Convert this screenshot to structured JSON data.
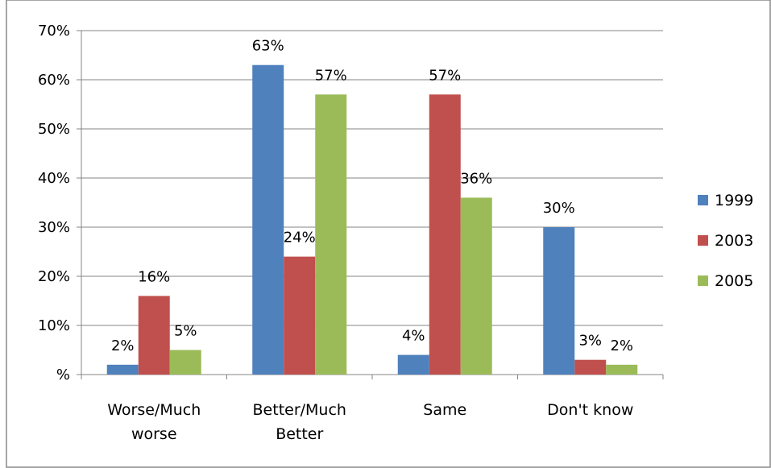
{
  "chart_data": {
    "type": "bar",
    "categories": [
      [
        "Worse/Much",
        "worse"
      ],
      [
        "Better/Much",
        "Better"
      ],
      [
        "Same"
      ],
      [
        "Don't know"
      ]
    ],
    "series": [
      {
        "name": "1999",
        "color": "#4F81BD",
        "values": [
          2,
          63,
          4,
          30
        ],
        "labels": [
          "2%",
          "63%",
          "4%",
          "30%"
        ]
      },
      {
        "name": "2003",
        "color": "#C0504D",
        "values": [
          16,
          24,
          57,
          3
        ],
        "labels": [
          "16%",
          "24%",
          "57%",
          "3%"
        ]
      },
      {
        "name": "2005",
        "color": "#9BBB59",
        "values": [
          5,
          57,
          36,
          2
        ],
        "labels": [
          "5%",
          "57%",
          "36%",
          "2%"
        ]
      }
    ],
    "y_ticks": [
      {
        "value": 0,
        "label": "%"
      },
      {
        "value": 10,
        "label": "10%"
      },
      {
        "value": 20,
        "label": "20%"
      },
      {
        "value": 30,
        "label": "30%"
      },
      {
        "value": 40,
        "label": "40%"
      },
      {
        "value": 50,
        "label": "50%"
      },
      {
        "value": 60,
        "label": "60%"
      },
      {
        "value": 70,
        "label": "70%"
      }
    ],
    "ylim": [
      0,
      70
    ],
    "grid": true,
    "legend_position": "right",
    "title": "",
    "xlabel": "",
    "ylabel": ""
  }
}
